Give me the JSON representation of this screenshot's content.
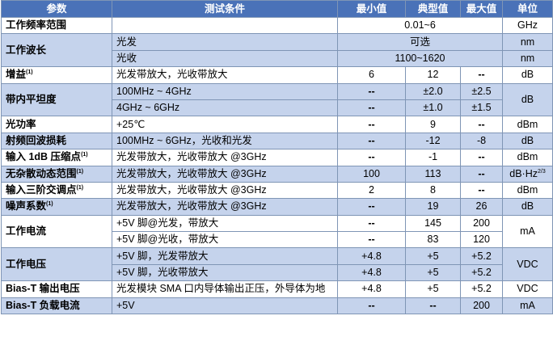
{
  "header": {
    "param": "参数",
    "condition": "测试条件",
    "min": "最小值",
    "typ": "典型值",
    "max": "最大值",
    "unit": "单位"
  },
  "rows": {
    "freq": {
      "param": "工作频率范围",
      "cond": "",
      "typ": "0.01~6",
      "unit": "GHz"
    },
    "wave": {
      "param": "工作波长",
      "cond1": "光发",
      "typ1": "可选",
      "cond2": "光收",
      "typ2": "1100~1620",
      "unit": "nm"
    },
    "gain": {
      "param": "增益",
      "sup": "(1)",
      "cond": "光发带放大，光收带放大",
      "min": "6",
      "typ": "12",
      "max": "--",
      "unit": "dB"
    },
    "flat": {
      "param": "带内平坦度",
      "cond1": "100MHz ~ 4GHz",
      "min1": "--",
      "typ1": "±2.0",
      "max1": "±2.5",
      "cond2": "4GHz ~ 6GHz",
      "min2": "--",
      "typ2": "±1.0",
      "max2": "±1.5",
      "unit": "dB"
    },
    "power": {
      "param": "光功率",
      "cond": "+25℃",
      "min": "--",
      "typ": "9",
      "max": "--",
      "unit": "dBm"
    },
    "rl": {
      "param": "射频回波损耗",
      "cond": "100MHz ~ 6GHz，光收和光发",
      "min": "--",
      "typ": "-12",
      "max": "-8",
      "unit": "dB"
    },
    "p1db": {
      "param": "输入 1dB 压缩点",
      "sup": "(1)",
      "cond": "光发带放大，光收带放大 @3GHz",
      "min": "--",
      "typ": "-1",
      "max": "--",
      "unit": "dBm"
    },
    "sfdr": {
      "param": "无杂散动态范围",
      "sup": "(1)",
      "cond": "光发带放大，光收带放大 @3GHz",
      "min": "100",
      "typ": "113",
      "max": "--",
      "unit": "dB·Hz",
      "unit_sup": "2/3"
    },
    "ip3": {
      "param": "输入三阶交调点",
      "sup": "(1)",
      "cond": "光发带放大，光收带放大 @3GHz",
      "min": "2",
      "typ": "8",
      "max": "--",
      "unit": "dBm"
    },
    "nf": {
      "param": "噪声系数",
      "sup": "(1)",
      "cond": "光发带放大，光收带放大 @3GHz",
      "min": "--",
      "typ": "19",
      "max": "26",
      "unit": "dB"
    },
    "cur": {
      "param": "工作电流",
      "cond1": "+5V 脚@光发，带放大",
      "min1": "--",
      "typ1": "145",
      "max1": "200",
      "cond2": "+5V 脚@光收，带放大",
      "min2": "--",
      "typ2": "83",
      "max2": "120",
      "unit": "mA"
    },
    "volt": {
      "param": "工作电压",
      "cond1": "+5V 脚，光发带放大",
      "min1": "+4.8",
      "typ1": "+5",
      "max1": "+5.2",
      "cond2": "+5V 脚，光收带放大",
      "min2": "+4.8",
      "typ2": "+5",
      "max2": "+5.2",
      "unit": "VDC"
    },
    "biasv": {
      "param": "Bias-T 输出电压",
      "cond": "光发模块 SMA 口内导体输出正压，外导体为地",
      "min": "+4.8",
      "typ": "+5",
      "max": "+5.2",
      "unit": "VDC"
    },
    "biasi": {
      "param": "Bias-T 负载电流",
      "cond": "+5V",
      "min": "--",
      "typ": "--",
      "max": "200",
      "unit": "mA"
    }
  },
  "colors": {
    "header": "#4a72b8",
    "band": "#c5d3ec",
    "border": "#7f95b5"
  }
}
